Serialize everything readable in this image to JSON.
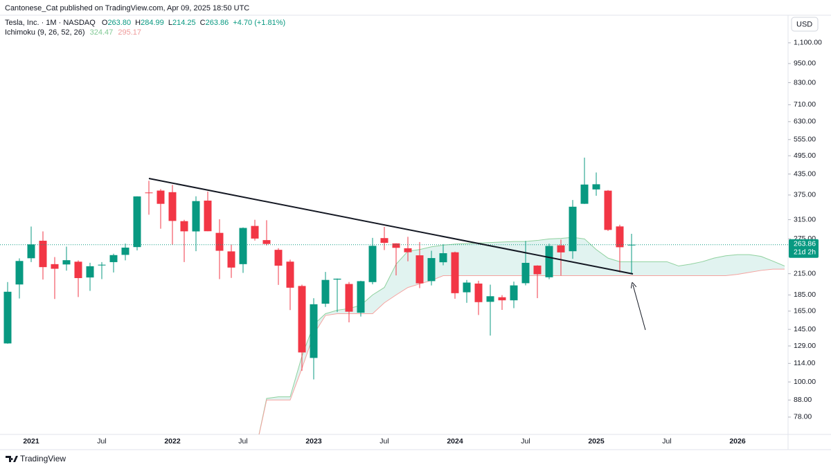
{
  "publisher": "Cantonese_Cat published on TradingView.com, Apr 09, 2025 18:50 UTC",
  "footer": "TradingView",
  "currency": "USD",
  "symbol": "Tesla, Inc. · 1M · NASDAQ",
  "ohlc_legend": [
    {
      "label": "O",
      "value": "263.80"
    },
    {
      "label": "H",
      "value": "284.99"
    },
    {
      "label": "L",
      "value": "214.25"
    },
    {
      "label": "C",
      "value": "263.86"
    }
  ],
  "change": "+4.70 (+1.81%)",
  "indicator": {
    "name": "Ichimoku (9, 26, 52, 26)",
    "value_a": "324.47",
    "value_b": "295.17"
  },
  "chart_data": {
    "type": "candlestick",
    "log_scale": true,
    "up_color": "#089981",
    "down_color": "#f23645",
    "categories": [
      null,
      null,
      "2021",
      null,
      null,
      null,
      null,
      null,
      "Jul",
      null,
      null,
      null,
      null,
      null,
      "2022",
      null,
      null,
      null,
      null,
      null,
      "Jul",
      null,
      null,
      null,
      null,
      null,
      "2023",
      null,
      null,
      null,
      null,
      null,
      "Jul",
      null,
      null,
      null,
      null,
      null,
      "2024",
      null,
      null,
      null,
      null,
      null,
      "Jul",
      null,
      null,
      null,
      null,
      null,
      "2025",
      null,
      null,
      null,
      null,
      null,
      "Jul",
      null,
      null,
      null,
      null,
      null,
      "2026",
      null,
      null,
      null,
      null
    ],
    "open": [
      131.3,
      199.2,
      239.8,
      271.4,
      230.0,
      229.5,
      234.0,
      209.3,
      227.9,
      233.3,
      245.6,
      259.5,
      381.7,
      386.9,
      382.6,
      311.7,
      289.9,
      360.4,
      286.9,
      251.7,
      230.0,
      301.3,
      272.6,
      254.5,
      234.1,
      197.1,
      118.5,
      173.9,
      206.2,
      199.9,
      163.2,
      202.6,
      276.5,
      266.3,
      257.3,
      244.8,
      204.0,
      233.1,
      250.1,
      188.5,
      200.5,
      176.2,
      182.0,
      178.1,
      201.0,
      227.7,
      209.6,
      262.7,
      252.0,
      352.4,
      390.1,
      386.7,
      300.3,
      263.8,
      null,
      null,
      null,
      null,
      null,
      null,
      null,
      null,
      null,
      null,
      null,
      null,
      null
    ],
    "high": [
      202.6,
      239.6,
      300.1,
      290.0,
      241.8,
      260.3,
      236.2,
      232.3,
      233.3,
      247.6,
      266.0,
      371.7,
      414.5,
      390.9,
      402.7,
      314.6,
      371.6,
      384.3,
      315.9,
      264.2,
      298.3,
      314.7,
      313.8,
      257.5,
      237.4,
      198.9,
      180.7,
      217.7,
      207.8,
      202.7,
      204.5,
      276.99,
      299.3,
      266.5,
      278.98,
      268.9,
      252.8,
      265.1,
      251.3,
      205.6,
      204.5,
      198.9,
      184.8,
      203.2,
      271.0,
      228.2,
      265.9,
      273.5,
      361.9,
      488.5,
      439.7,
      388.4,
      303.9,
      284.99,
      null,
      null,
      null,
      null,
      null,
      null,
      null,
      null,
      null,
      null,
      null,
      null,
      null
    ],
    "low": [
      131.0,
      180.4,
      233.3,
      206.3,
      179.8,
      219.7,
      182.3,
      190.4,
      206.9,
      216.9,
      236.2,
      253.5,
      326.2,
      295.4,
      264.0,
      233.3,
      252.0,
      290.3,
      206.9,
      208.7,
      216.2,
      271.8,
      262.5,
      198.6,
      166.2,
      108.2,
      101.8,
      169.9,
      163.9,
      152.4,
      158.8,
      199.4,
      254.1,
      212.4,
      234.6,
      194.1,
      197.9,
      228.2,
      180.1,
      175.0,
      160.5,
      138.8,
      166.4,
      168.5,
      198.0,
      180.9,
      206.8,
      212.1,
      238.9,
      352.0,
      373.0,
      290.8,
      217.0,
      214.25,
      null,
      null,
      null,
      null,
      null,
      null,
      null,
      null,
      null,
      null,
      null,
      null,
      null
    ],
    "close": [
      189.2,
      235.2,
      264.5,
      225.2,
      222.6,
      236.5,
      208.4,
      226.6,
      229.1,
      245.2,
      258.5,
      371.3,
      381.6,
      352.3,
      312.2,
      290.1,
      359.2,
      290.3,
      252.8,
      224.5,
      297.1,
      275.6,
      265.3,
      227.5,
      194.7,
      123.2,
      173.2,
      205.7,
      207.5,
      164.3,
      203.9,
      261.8,
      267.4,
      258.1,
      250.2,
      200.8,
      240.1,
      248.5,
      187.3,
      201.9,
      175.8,
      183.3,
      178.1,
      197.9,
      232.1,
      214.1,
      261.6,
      249.9,
      345.2,
      403.8,
      404.6,
      292.98,
      259.2,
      263.86,
      null,
      null,
      null,
      null,
      null,
      null,
      null,
      null,
      null,
      null,
      null,
      null,
      null
    ],
    "cloud_a": {
      "color": "#8fd19e",
      "values": [
        null,
        null,
        null,
        null,
        null,
        null,
        null,
        null,
        null,
        null,
        null,
        null,
        null,
        null,
        null,
        null,
        null,
        null,
        null,
        null,
        null,
        60,
        89,
        90,
        90,
        120,
        150,
        162,
        166,
        168,
        172,
        185,
        195,
        230,
        252,
        255,
        260,
        263,
        265,
        266,
        267,
        268,
        269,
        270,
        270,
        272,
        275,
        276,
        278,
        275,
        255,
        240,
        234,
        234,
        234,
        234,
        234,
        227,
        230,
        234,
        240,
        244,
        246,
        246,
        243,
        235,
        227
      ]
    },
    "cloud_b": {
      "color": "#f5a3a0",
      "values": [
        null,
        null,
        null,
        null,
        null,
        null,
        null,
        null,
        null,
        null,
        null,
        null,
        null,
        null,
        null,
        null,
        null,
        null,
        null,
        null,
        null,
        60,
        88,
        88,
        88,
        110,
        140,
        160,
        162,
        162,
        162,
        162,
        175,
        185,
        195,
        200,
        205,
        212,
        212,
        212,
        212,
        212,
        212,
        212,
        212,
        212,
        212,
        212,
        212,
        212,
        212,
        212,
        212,
        212,
        212,
        212,
        212,
        212,
        212,
        212,
        212,
        212,
        214,
        217,
        220,
        222,
        222
      ]
    },
    "cloud_fill": "rgba(8,153,129,0.12)",
    "last_price": {
      "value": 263.86,
      "label": "263.86"
    },
    "countdown": "21d 2h",
    "ylim": [
      69,
      1337
    ],
    "yticks": [
      {
        "value": 1100,
        "label": "1,100.00"
      },
      {
        "value": 950,
        "label": "950.00"
      },
      {
        "value": 830,
        "label": "830.00"
      },
      {
        "value": 710,
        "label": "710.00"
      },
      {
        "value": 630,
        "label": "630.00"
      },
      {
        "value": 555,
        "label": "555.00"
      },
      {
        "value": 495,
        "label": "495.00"
      },
      {
        "value": 435,
        "label": "435.00"
      },
      {
        "value": 375,
        "label": "375.00"
      },
      {
        "value": 315,
        "label": "315.00"
      },
      {
        "value": 275,
        "label": "275.00"
      },
      {
        "value": 215,
        "label": "215.00"
      },
      {
        "value": 185,
        "label": "185.00"
      },
      {
        "value": 165,
        "label": "165.00"
      },
      {
        "value": 145,
        "label": "145.00"
      },
      {
        "value": 129,
        "label": "129.00"
      },
      {
        "value": 114,
        "label": "114.00"
      },
      {
        "value": 100,
        "label": "100.00"
      },
      {
        "value": 88,
        "label": "88.00"
      },
      {
        "value": 78,
        "label": "78.00"
      }
    ]
  }
}
